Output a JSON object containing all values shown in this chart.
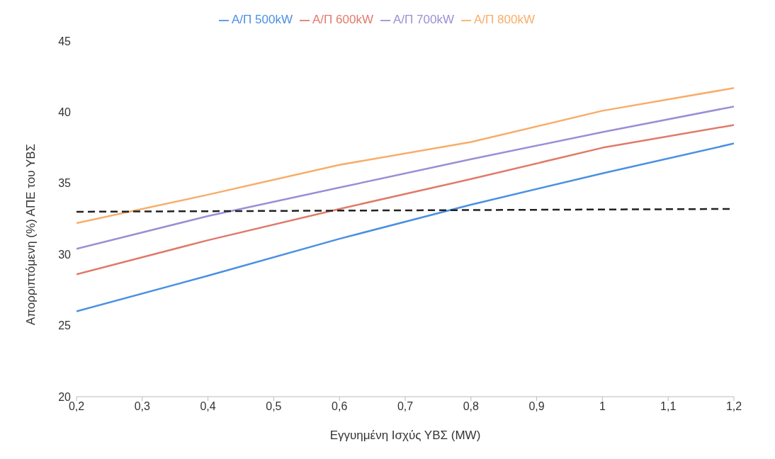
{
  "chart_data": {
    "type": "line",
    "xlabel": "Εγγυημένη Ισχύς ΥΒΣ (MW)",
    "ylabel": "Απορριπτόμενη (%) ΑΠΕ του ΥΒΣ",
    "x": [
      0.2,
      0.4,
      0.6,
      0.8,
      1.0,
      1.2
    ],
    "series": [
      {
        "name": "Α/Π 500kW",
        "color": "#4a90e2",
        "values": [
          26.0,
          28.5,
          31.1,
          33.5,
          35.7,
          37.8
        ]
      },
      {
        "name": "Α/Π 600kW",
        "color": "#e07a6a",
        "values": [
          28.6,
          31.0,
          33.2,
          35.3,
          37.5,
          39.1
        ]
      },
      {
        "name": "Α/Π 700kW",
        "color": "#9b8fd4",
        "values": [
          30.4,
          32.7,
          34.7,
          36.7,
          38.6,
          40.4
        ]
      },
      {
        "name": "Α/Π 800kW",
        "color": "#f7ad6a",
        "values": [
          32.2,
          34.2,
          36.3,
          37.9,
          40.1,
          41.7
        ]
      },
      {
        "color": "#222222",
        "line_style": "dashed",
        "x": [
          0.2,
          1.2
        ],
        "values": [
          33.0,
          33.2
        ]
      }
    ],
    "xlim": [
      0.2,
      1.2
    ],
    "xticks": [
      {
        "value": 0.2,
        "label": "0,2"
      },
      {
        "value": 0.3,
        "label": "0,3"
      },
      {
        "value": 0.4,
        "label": "0,4"
      },
      {
        "value": 0.5,
        "label": "0,5"
      },
      {
        "value": 0.6,
        "label": "0,6"
      },
      {
        "value": 0.7,
        "label": "0,7"
      },
      {
        "value": 0.8,
        "label": "0,8"
      },
      {
        "value": 0.9,
        "label": "0,9"
      },
      {
        "value": 1,
        "label": "1"
      },
      {
        "value": 1.1,
        "label": "1,1"
      },
      {
        "value": 1.2,
        "label": "1,2"
      }
    ],
    "ylim": [
      20,
      45
    ],
    "yticks": [
      20,
      25,
      30,
      35,
      40,
      45
    ],
    "legend": "top",
    "marker": "none",
    "line_style": "solid"
  }
}
